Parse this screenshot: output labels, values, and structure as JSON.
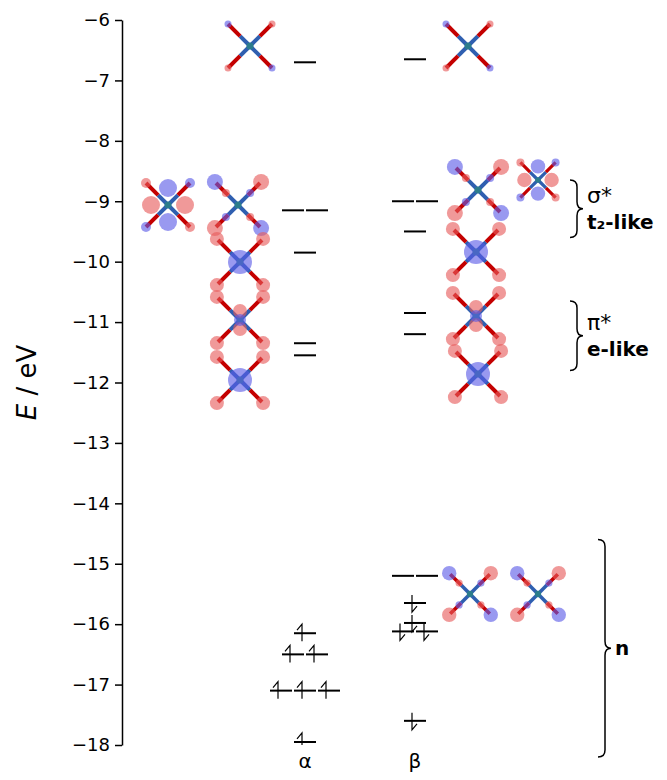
{
  "chart_data": {
    "type": "energy_level",
    "y_label": "E / eV",
    "ylim": [
      -18,
      -6
    ],
    "yticks": [
      {
        "value": -18,
        "label": "−18"
      },
      {
        "value": -17,
        "label": "−17"
      },
      {
        "value": -16,
        "label": "−16"
      },
      {
        "value": -15,
        "label": "−15"
      },
      {
        "value": -14,
        "label": "−14"
      },
      {
        "value": -13,
        "label": "−13"
      },
      {
        "value": -12,
        "label": "−12"
      },
      {
        "value": -11,
        "label": "−11"
      },
      {
        "value": -10,
        "label": "−10"
      },
      {
        "value": -9,
        "label": "−9"
      },
      {
        "value": -8,
        "label": "−8"
      },
      {
        "value": -7,
        "label": "−7"
      },
      {
        "value": -6,
        "label": "−6"
      }
    ],
    "series": [
      {
        "name": "α",
        "values": [
          -6.7,
          -9.15,
          -9.15,
          -9.85,
          -11.35,
          -11.55,
          -16.15,
          -16.5,
          -16.5,
          -17.1,
          -17.1,
          -17.1,
          -17.95
        ],
        "occupation": [
          0,
          0,
          0,
          0,
          0,
          0,
          1,
          1,
          1,
          1,
          1,
          1,
          1
        ]
      },
      {
        "name": "β",
        "values": [
          -6.65,
          -9.0,
          -9.0,
          -9.5,
          -10.85,
          -11.2,
          -15.2,
          -15.2,
          -15.65,
          -15.98,
          -16.12,
          -16.12,
          -17.6
        ],
        "occupation": [
          0,
          0,
          0,
          0,
          0,
          0,
          0,
          0,
          1,
          1,
          1,
          1,
          1
        ]
      }
    ],
    "annotations": [
      {
        "text": [
          "σ*",
          "t₂-like"
        ],
        "range": [
          -9.6,
          -8.65
        ]
      },
      {
        "text": [
          "π*",
          "e-like"
        ],
        "range": [
          -11.8,
          -10.65
        ]
      },
      {
        "text": [
          "n"
        ],
        "range": [
          -18.2,
          -14.6
        ]
      }
    ]
  }
}
